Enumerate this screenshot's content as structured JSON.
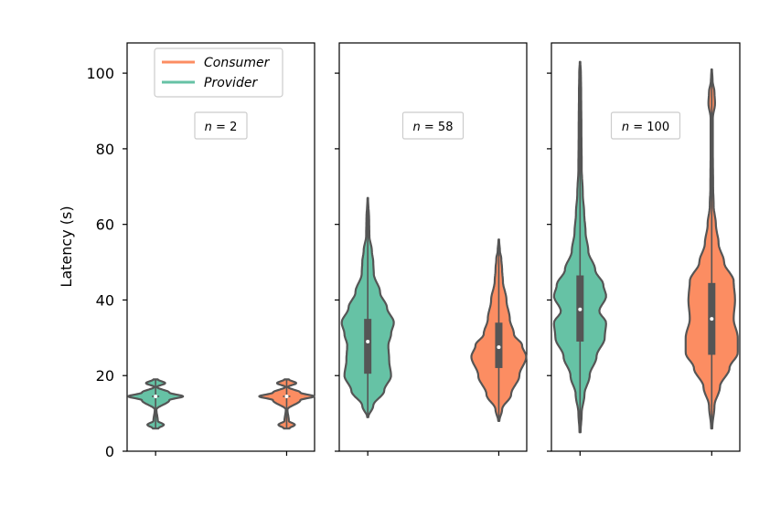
{
  "chart_data": {
    "type": "violin",
    "ylabel": "Latency (s)",
    "ylim": [
      0,
      108
    ],
    "yticks": [
      0,
      20,
      40,
      60,
      80,
      100
    ],
    "legend": {
      "placement": "top-center of first panel",
      "entries": [
        {
          "name": "Consumer",
          "color": "#fc8d62"
        },
        {
          "name": "Provider",
          "color": "#66c2a5"
        }
      ]
    },
    "panels": [
      {
        "annotation_n": "n = 2",
        "n_label": "2",
        "violins": [
          {
            "series": "Provider",
            "color": "#66c2a5",
            "min": 6,
            "max": 19,
            "q1": 14.3,
            "median": 14.5,
            "q3": 14.7,
            "profile": [
              [
                6,
                0.1
              ],
              [
                7,
                0.3
              ],
              [
                8,
                0.08
              ],
              [
                11,
                0.03
              ],
              [
                13.5,
                0.5
              ],
              [
                14.5,
                1.0
              ],
              [
                15.5,
                0.5
              ],
              [
                17,
                0.05
              ],
              [
                18,
                0.35
              ],
              [
                19,
                0.08
              ]
            ]
          },
          {
            "series": "Consumer",
            "color": "#fc8d62",
            "min": 6,
            "max": 19,
            "q1": 14.3,
            "median": 14.5,
            "q3": 14.7,
            "profile": [
              [
                6,
                0.1
              ],
              [
                7,
                0.3
              ],
              [
                8,
                0.08
              ],
              [
                11,
                0.03
              ],
              [
                13.5,
                0.5
              ],
              [
                14.5,
                1.0
              ],
              [
                15.5,
                0.5
              ],
              [
                17,
                0.05
              ],
              [
                18,
                0.35
              ],
              [
                19,
                0.08
              ]
            ]
          }
        ]
      },
      {
        "annotation_n": "n = 58",
        "n_label": "58",
        "violins": [
          {
            "series": "Provider",
            "color": "#66c2a5",
            "min": 9,
            "max": 67,
            "q1": 20.5,
            "median": 29,
            "q3": 35,
            "profile": [
              [
                9,
                0.02
              ],
              [
                12,
                0.2
              ],
              [
                16,
                0.6
              ],
              [
                20,
                0.85
              ],
              [
                24,
                0.78
              ],
              [
                28,
                0.75
              ],
              [
                31,
                0.85
              ],
              [
                34,
                0.95
              ],
              [
                38,
                0.7
              ],
              [
                42,
                0.45
              ],
              [
                47,
                0.22
              ],
              [
                50,
                0.2
              ],
              [
                53,
                0.15
              ],
              [
                57,
                0.06
              ],
              [
                61,
                0.05
              ],
              [
                67,
                0.01
              ]
            ]
          },
          {
            "series": "Consumer",
            "color": "#fc8d62",
            "min": 8,
            "max": 56,
            "q1": 22,
            "median": 27.5,
            "q3": 34,
            "profile": [
              [
                8,
                0.02
              ],
              [
                11,
                0.12
              ],
              [
                15,
                0.45
              ],
              [
                20,
                0.75
              ],
              [
                25,
                1.0
              ],
              [
                28,
                0.85
              ],
              [
                31,
                0.55
              ],
              [
                35,
                0.4
              ],
              [
                40,
                0.28
              ],
              [
                45,
                0.15
              ],
              [
                48,
                0.12
              ],
              [
                51,
                0.09
              ],
              [
                53,
                0.04
              ],
              [
                56,
                0.01
              ]
            ]
          }
        ]
      },
      {
        "annotation_n": "n = 100",
        "n_label": "100",
        "violins": [
          {
            "series": "Provider",
            "color": "#66c2a5",
            "min": 5,
            "max": 103,
            "q1": 29,
            "median": 37.5,
            "q3": 46.5,
            "profile": [
              [
                5,
                0.02
              ],
              [
                10,
                0.06
              ],
              [
                15,
                0.16
              ],
              [
                20,
                0.35
              ],
              [
                25,
                0.6
              ],
              [
                30,
                0.9
              ],
              [
                34,
                0.95
              ],
              [
                37,
                0.7
              ],
              [
                41,
                0.95
              ],
              [
                44,
                0.85
              ],
              [
                48,
                0.55
              ],
              [
                53,
                0.3
              ],
              [
                58,
                0.2
              ],
              [
                63,
                0.15
              ],
              [
                68,
                0.1
              ],
              [
                75,
                0.06
              ],
              [
                85,
                0.05
              ],
              [
                95,
                0.04
              ],
              [
                100,
                0.03
              ],
              [
                103,
                0.01
              ]
            ]
          },
          {
            "series": "Consumer",
            "color": "#fc8d62",
            "min": 6,
            "max": 101,
            "q1": 25.5,
            "median": 35,
            "q3": 44.5,
            "profile": [
              [
                6,
                0.02
              ],
              [
                12,
                0.1
              ],
              [
                17,
                0.3
              ],
              [
                22,
                0.65
              ],
              [
                26,
                0.95
              ],
              [
                30,
                0.95
              ],
              [
                35,
                0.8
              ],
              [
                40,
                0.85
              ],
              [
                45,
                0.8
              ],
              [
                50,
                0.45
              ],
              [
                55,
                0.25
              ],
              [
                60,
                0.15
              ],
              [
                65,
                0.07
              ],
              [
                70,
                0.05
              ],
              [
                80,
                0.04
              ],
              [
                88,
                0.04
              ],
              [
                92,
                0.12
              ],
              [
                95,
                0.1
              ],
              [
                98,
                0.03
              ],
              [
                101,
                0.01
              ]
            ]
          }
        ]
      }
    ]
  }
}
